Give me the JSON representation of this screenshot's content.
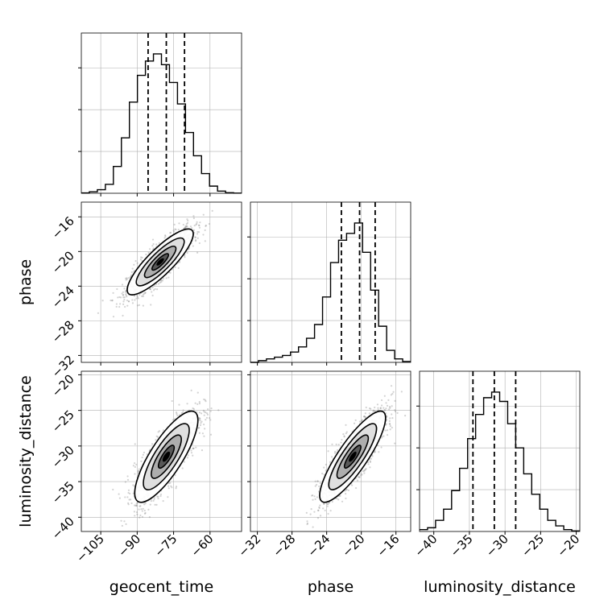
{
  "chart_data": {
    "type": "corner",
    "parameters": [
      "geocent_time",
      "phase",
      "luminosity_distance"
    ],
    "grid": true,
    "panels": {
      "geocent_time": {
        "xlim": [
          -113,
          -47
        ],
        "xticks": [
          -105,
          -90,
          -75,
          -60
        ],
        "tick_labels": [
          "−105",
          "−90",
          "−75",
          "−60"
        ],
        "quantiles": [
          -85.5,
          -78,
          -70.5
        ]
      },
      "phase": {
        "xlim": [
          -32.8,
          -14.3
        ],
        "xticks": [
          -32,
          -28,
          -24,
          -20,
          -16
        ],
        "tick_labels": [
          "−32",
          "−28",
          "−24",
          "−20",
          "−16"
        ],
        "quantiles": [
          -22.3,
          -20.2,
          -18.4
        ]
      },
      "luminosity_distance": {
        "xlim": [
          -42,
          -19.5
        ],
        "xticks": [
          -40,
          -35,
          -30,
          -25,
          -20
        ],
        "tick_labels": [
          "−40",
          "−35",
          "−30",
          "−25",
          "−20"
        ],
        "quantiles": [
          -34.5,
          -31.5,
          -28.5
        ]
      }
    },
    "histograms": {
      "geocent_time": {
        "edges": [
          -113,
          -109.7,
          -106.4,
          -103.1,
          -99.8,
          -96.5,
          -93.2,
          -89.9,
          -86.6,
          -83.3,
          -80,
          -76.7,
          -73.4,
          -70.1,
          -66.8,
          -63.5,
          -60.2,
          -56.9,
          -53.6,
          -50.3,
          -47
        ],
        "counts": [
          0.2,
          0.8,
          2.0,
          5.0,
          15.0,
          31.0,
          51.0,
          66.0,
          74.0,
          78.0,
          72.0,
          62.0,
          50.0,
          34.0,
          21.0,
          11.0,
          4.0,
          1.2,
          0.3,
          0.1
        ]
      },
      "phase": {
        "edges": [
          -32.8,
          -31.875,
          -30.95,
          -30.025,
          -29.1,
          -28.175,
          -27.25,
          -26.325,
          -25.4,
          -24.475,
          -23.55,
          -22.625,
          -21.7,
          -20.775,
          -19.85,
          -18.925,
          -18.0,
          -17.075,
          -16.15,
          -15.225,
          -14.3
        ],
        "counts": [
          0.0,
          1.0,
          2.0,
          3.0,
          4.0,
          6.0,
          9.0,
          14.0,
          22.0,
          38.0,
          58.0,
          71.0,
          75.0,
          81.0,
          64.0,
          42.0,
          21.0,
          7.0,
          2.0,
          0.5
        ]
      },
      "luminosity_distance": {
        "edges": [
          -42,
          -40.875,
          -39.75,
          -38.625,
          -37.5,
          -36.375,
          -35.25,
          -34.125,
          -33,
          -31.875,
          -30.75,
          -29.625,
          -28.5,
          -27.375,
          -26.25,
          -25.125,
          -24,
          -22.875,
          -21.75,
          -20.625,
          -19.5
        ],
        "counts": [
          1.0,
          2.0,
          6.0,
          12.0,
          22.0,
          34.0,
          50.0,
          63.0,
          72.0,
          75.0,
          70.0,
          58.0,
          45.0,
          31.0,
          20.0,
          12.0,
          6.0,
          3.0,
          1.0,
          0.3
        ]
      }
    },
    "pairs": [
      {
        "x": "geocent_time",
        "y": "phase",
        "ylim": [
          -32.8,
          -14.3
        ],
        "yticks": [
          -32,
          -28,
          -24,
          -20,
          -16
        ],
        "ytick_labels": [
          "−32",
          "−28",
          "−24",
          "−20",
          "−16"
        ],
        "center": [
          -80.5,
          -21.2
        ],
        "sd": [
          6.8,
          1.9
        ],
        "rho": 0.85
      },
      {
        "x": "geocent_time",
        "y": "luminosity_distance",
        "ylim": [
          -42,
          -19.5
        ],
        "yticks": [
          -40,
          -35,
          -30,
          -25,
          -20
        ],
        "ytick_labels": [
          "−40",
          "−35",
          "−30",
          "−25",
          "−20"
        ],
        "center": [
          -78,
          -31.5
        ],
        "sd": [
          6.5,
          3.2
        ],
        "rho": 0.8
      },
      {
        "x": "phase",
        "y": "luminosity_distance",
        "ylim": [
          -42,
          -19.5
        ],
        "yticks": [
          -40,
          -35,
          -30,
          -25,
          -20
        ],
        "ytick_labels": [
          "−40",
          "−35",
          "−30",
          "−25",
          "−20"
        ],
        "center": [
          -21.0,
          -31.5
        ],
        "sd": [
          1.9,
          3.2
        ],
        "rho": 0.85
      }
    ],
    "xlabels": [
      "geocent_time",
      "phase",
      "luminosity_distance"
    ],
    "ylabels": [
      "phase",
      "luminosity_distance"
    ],
    "colors": {
      "line": "#000000",
      "grid": "#b0b0b0",
      "points": "#808080"
    }
  }
}
